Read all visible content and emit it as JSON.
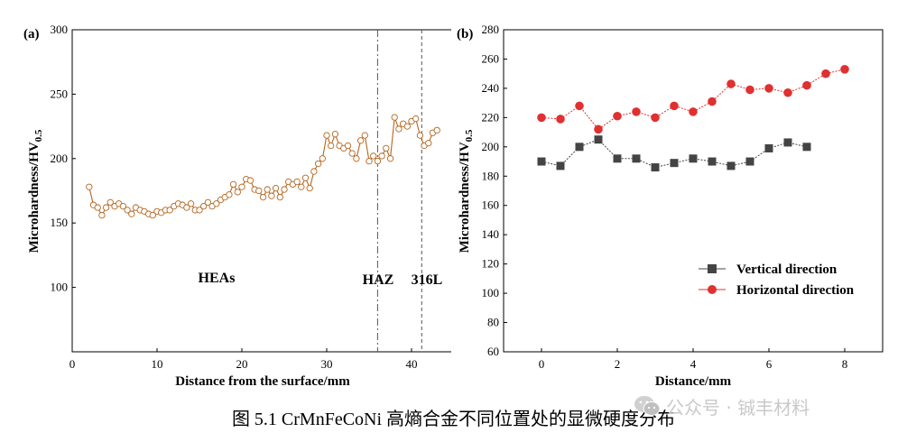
{
  "caption": "图 5.1 CrMnFeCoNi 高熵合金不同位置处的显微硬度分布",
  "watermark": {
    "text": "公众号 · 铖丰材料",
    "icon": "wechat-icon"
  },
  "colors": {
    "chart_a_line": "#b5651d",
    "chart_a_marker_stroke": "#b5651d",
    "vertical_series": "#444444",
    "horizontal_series": "#e03030",
    "divider": "#555555"
  },
  "chart_data": [
    {
      "panel_label": "(a)",
      "type": "line",
      "xlabel": "Distance from the surface/mm",
      "ylabel_main": "Microhardness/HV",
      "ylabel_sub": "0.5",
      "xlim": [
        0,
        45
      ],
      "ylim": [
        50,
        300
      ],
      "xticks": [
        0,
        10,
        20,
        30,
        40
      ],
      "yticks": [
        100,
        150,
        200,
        250,
        300
      ],
      "dividers": [
        36,
        41.2
      ],
      "regions": [
        "HEAs",
        "HAZ",
        "316L"
      ],
      "series": [
        {
          "name": "Microhardness",
          "x": [
            2,
            2.5,
            3,
            3.5,
            4,
            4.5,
            5,
            5.5,
            6,
            6.5,
            7,
            7.5,
            8,
            8.5,
            9,
            9.5,
            10,
            10.5,
            11,
            11.5,
            12,
            12.5,
            13,
            13.5,
            14,
            14.5,
            15,
            15.5,
            16,
            16.5,
            17,
            17.5,
            18,
            18.5,
            19,
            19.5,
            20,
            20.5,
            21,
            21.5,
            22,
            22.5,
            23,
            23.5,
            24,
            24.5,
            25,
            25.5,
            26,
            26.5,
            27,
            27.5,
            28,
            28.5,
            29,
            29.5,
            30,
            30.5,
            31,
            31.5,
            32,
            32.5,
            33,
            33.5,
            34,
            34.5,
            35,
            35.5,
            36,
            36.5,
            37,
            37.5,
            38,
            38.5,
            39,
            39.5,
            40,
            40.5,
            41,
            41.5,
            42,
            42.5,
            43
          ],
          "y": [
            178,
            164,
            162,
            156,
            162,
            166,
            163,
            165,
            163,
            160,
            157,
            162,
            160,
            159,
            157,
            156,
            159,
            158,
            160,
            160,
            163,
            165,
            164,
            162,
            165,
            160,
            160,
            163,
            166,
            163,
            165,
            168,
            170,
            172,
            180,
            174,
            178,
            184,
            183,
            176,
            175,
            170,
            176,
            171,
            177,
            170,
            176,
            182,
            180,
            182,
            178,
            185,
            177,
            190,
            196,
            200,
            218,
            210,
            219,
            210,
            208,
            210,
            204,
            200,
            214,
            218,
            198,
            202,
            198,
            202,
            208,
            200,
            232,
            223,
            227,
            225,
            229,
            231,
            218,
            210,
            212,
            220,
            222
          ]
        }
      ]
    },
    {
      "panel_label": "(b)",
      "type": "line",
      "xlabel": "Distance/mm",
      "ylabel_main": "Microhardness/HV",
      "ylabel_sub": "0.5",
      "xlim": [
        -1,
        9
      ],
      "ylim": [
        60,
        280
      ],
      "xticks": [
        0,
        2,
        4,
        6,
        8
      ],
      "yticks": [
        60,
        80,
        100,
        120,
        140,
        160,
        180,
        200,
        220,
        240,
        260,
        280
      ],
      "legend_position": "bottom-right",
      "series": [
        {
          "name": "Vertical direction",
          "marker": "square",
          "x": [
            0,
            0.5,
            1,
            1.5,
            2,
            2.5,
            3,
            3.5,
            4,
            4.5,
            5,
            5.5,
            6,
            6.5,
            7
          ],
          "y": [
            190,
            187,
            200,
            205,
            192,
            192,
            186,
            189,
            192,
            190,
            187,
            190,
            199,
            203,
            200
          ]
        },
        {
          "name": "Horizontal direction",
          "marker": "circle",
          "x": [
            0,
            0.5,
            1,
            1.5,
            2,
            2.5,
            3,
            3.5,
            4,
            4.5,
            5,
            5.5,
            6,
            6.5,
            7,
            7.5,
            8
          ],
          "y": [
            220,
            219,
            228,
            212,
            221,
            224,
            220,
            228,
            224,
            231,
            243,
            239,
            240,
            237,
            242,
            250,
            253
          ]
        }
      ]
    }
  ]
}
